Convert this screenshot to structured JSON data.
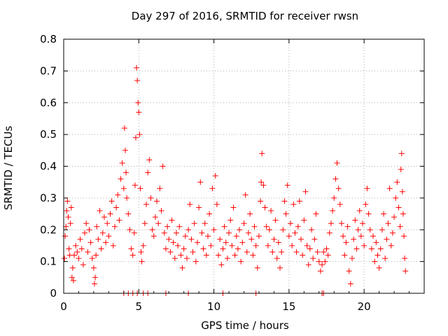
{
  "chart_data": {
    "type": "scatter",
    "title": "Day 297 of 2016, SRMTID for receiver rwsn",
    "xlabel": "GPS time / hours",
    "ylabel": "SRMTID / TECUs",
    "xlim": [
      0,
      24
    ],
    "ylim": [
      0,
      0.8
    ],
    "xticks": [
      {
        "value": 0,
        "label": "0"
      },
      {
        "value": 5,
        "label": "5"
      },
      {
        "value": 10,
        "label": "10"
      },
      {
        "value": 15,
        "label": "15"
      },
      {
        "value": 20,
        "label": "20"
      }
    ],
    "yticks": [
      {
        "value": 0,
        "label": "0"
      },
      {
        "value": 0.1,
        "label": "0.1"
      },
      {
        "value": 0.2,
        "label": "0.2"
      },
      {
        "value": 0.3,
        "label": "0.3"
      },
      {
        "value": 0.4,
        "label": "0.4"
      },
      {
        "value": 0.5,
        "label": "0.5"
      },
      {
        "value": 0.6,
        "label": "0.6"
      },
      {
        "value": 0.7,
        "label": "0.7"
      },
      {
        "value": 0.8,
        "label": "0.8"
      }
    ],
    "grid": true,
    "marker": "+",
    "series": [
      {
        "name": "SRMTID",
        "color": "#ff0000",
        "points": [
          [
            0.05,
            0.11
          ],
          [
            0.1,
            0.18
          ],
          [
            0.15,
            0.21
          ],
          [
            0.2,
            0.26
          ],
          [
            0.25,
            0.29
          ],
          [
            0.3,
            0.24
          ],
          [
            0.35,
            0.14
          ],
          [
            0.4,
            0.12
          ],
          [
            0.45,
            0.22
          ],
          [
            0.5,
            0.27
          ],
          [
            0.55,
            0.05
          ],
          [
            0.6,
            0.08
          ],
          [
            0.65,
            0.04
          ],
          [
            0.7,
            0.12
          ],
          [
            0.8,
            0.15
          ],
          [
            0.9,
            0.13
          ],
          [
            1.0,
            0.11
          ],
          [
            1.1,
            0.17
          ],
          [
            1.2,
            0.14
          ],
          [
            1.3,
            0.09
          ],
          [
            1.4,
            0.19
          ],
          [
            1.5,
            0.22
          ],
          [
            1.6,
            0.13
          ],
          [
            1.7,
            0.2
          ],
          [
            1.8,
            0.16
          ],
          [
            1.9,
            0.11
          ],
          [
            2.0,
            0.08
          ],
          [
            2.05,
            0.03
          ],
          [
            2.1,
            0.05
          ],
          [
            2.15,
            0.12
          ],
          [
            2.2,
            0.21
          ],
          [
            2.3,
            0.17
          ],
          [
            2.4,
            0.26
          ],
          [
            2.5,
            0.14
          ],
          [
            2.6,
            0.19
          ],
          [
            2.7,
            0.24
          ],
          [
            2.8,
            0.16
          ],
          [
            2.9,
            0.22
          ],
          [
            3.0,
            0.18
          ],
          [
            3.1,
            0.25
          ],
          [
            3.2,
            0.29
          ],
          [
            3.3,
            0.15
          ],
          [
            3.4,
            0.21
          ],
          [
            3.5,
            0.27
          ],
          [
            3.6,
            0.31
          ],
          [
            3.7,
            0.23
          ],
          [
            3.8,
            0.36
          ],
          [
            3.9,
            0.41
          ],
          [
            4.0,
            0.33
          ],
          [
            4.05,
            0.52
          ],
          [
            4.1,
            0.45
          ],
          [
            4.15,
            0.38
          ],
          [
            4.2,
            0.3
          ],
          [
            4.3,
            0.25
          ],
          [
            4.4,
            0.2
          ],
          [
            4.5,
            0.14
          ],
          [
            4.6,
            0.12
          ],
          [
            4.7,
            0.19
          ],
          [
            4.75,
            0.34
          ],
          [
            4.8,
            0.49
          ],
          [
            4.85,
            0.71
          ],
          [
            4.9,
            0.67
          ],
          [
            4.95,
            0.6
          ],
          [
            5.0,
            0.57
          ],
          [
            5.05,
            0.5
          ],
          [
            5.1,
            0.33
          ],
          [
            5.15,
            0.13
          ],
          [
            5.2,
            0.1
          ],
          [
            5.3,
            0.15
          ],
          [
            5.4,
            0.22
          ],
          [
            5.5,
            0.28
          ],
          [
            5.6,
            0.38
          ],
          [
            5.7,
            0.42
          ],
          [
            5.8,
            0.3
          ],
          [
            5.9,
            0.2
          ],
          [
            6.0,
            0.18
          ],
          [
            6.1,
            0.24
          ],
          [
            6.2,
            0.29
          ],
          [
            6.3,
            0.22
          ],
          [
            6.4,
            0.33
          ],
          [
            6.5,
            0.26
          ],
          [
            6.6,
            0.4
          ],
          [
            6.7,
            0.19
          ],
          [
            6.8,
            0.14
          ],
          [
            6.9,
            0.21
          ],
          [
            7.0,
            0.17
          ],
          [
            7.1,
            0.13
          ],
          [
            7.2,
            0.23
          ],
          [
            7.3,
            0.16
          ],
          [
            7.4,
            0.11
          ],
          [
            7.5,
            0.19
          ],
          [
            7.6,
            0.15
          ],
          [
            7.7,
            0.21
          ],
          [
            7.8,
            0.12
          ],
          [
            7.9,
            0.08
          ],
          [
            8.0,
            0.14
          ],
          [
            8.1,
            0.18
          ],
          [
            8.2,
            0.11
          ],
          [
            8.3,
            0.2
          ],
          [
            8.4,
            0.28
          ],
          [
            8.5,
            0.17
          ],
          [
            8.6,
            0.13
          ],
          [
            8.7,
            0.22
          ],
          [
            8.8,
            0.1
          ],
          [
            8.9,
            0.16
          ],
          [
            9.0,
            0.27
          ],
          [
            9.1,
            0.35
          ],
          [
            9.2,
            0.19
          ],
          [
            9.3,
            0.14
          ],
          [
            9.4,
            0.22
          ],
          [
            9.5,
            0.12
          ],
          [
            9.6,
            0.18
          ],
          [
            9.7,
            0.25
          ],
          [
            9.8,
            0.15
          ],
          [
            9.9,
            0.33
          ],
          [
            10.0,
            0.2
          ],
          [
            10.1,
            0.37
          ],
          [
            10.2,
            0.28
          ],
          [
            10.3,
            0.12
          ],
          [
            10.4,
            0.17
          ],
          [
            10.5,
            0.09
          ],
          [
            10.6,
            0.14
          ],
          [
            10.7,
            0.21
          ],
          [
            10.8,
            0.16
          ],
          [
            10.9,
            0.11
          ],
          [
            11.0,
            0.19
          ],
          [
            11.1,
            0.23
          ],
          [
            11.2,
            0.15
          ],
          [
            11.3,
            0.27
          ],
          [
            11.4,
            0.12
          ],
          [
            11.5,
            0.18
          ],
          [
            11.6,
            0.14
          ],
          [
            11.7,
            0.2
          ],
          [
            11.8,
            0.1
          ],
          [
            11.9,
            0.16
          ],
          [
            12.0,
            0.22
          ],
          [
            12.1,
            0.31
          ],
          [
            12.2,
            0.13
          ],
          [
            12.3,
            0.19
          ],
          [
            12.4,
            0.25
          ],
          [
            12.5,
            0.17
          ],
          [
            12.6,
            0.12
          ],
          [
            12.7,
            0.21
          ],
          [
            12.8,
            0.15
          ],
          [
            12.9,
            0.08
          ],
          [
            13.0,
            0.18
          ],
          [
            13.1,
            0.29
          ],
          [
            13.15,
            0.35
          ],
          [
            13.2,
            0.44
          ],
          [
            13.3,
            0.34
          ],
          [
            13.4,
            0.27
          ],
          [
            13.5,
            0.21
          ],
          [
            13.6,
            0.15
          ],
          [
            13.7,
            0.2
          ],
          [
            13.8,
            0.26
          ],
          [
            13.9,
            0.13
          ],
          [
            14.0,
            0.17
          ],
          [
            14.1,
            0.23
          ],
          [
            14.2,
            0.11
          ],
          [
            14.3,
            0.16
          ],
          [
            14.4,
            0.08
          ],
          [
            14.5,
            0.13
          ],
          [
            14.6,
            0.2
          ],
          [
            14.7,
            0.29
          ],
          [
            14.8,
            0.25
          ],
          [
            14.9,
            0.34
          ],
          [
            15.0,
            0.18
          ],
          [
            15.1,
            0.22
          ],
          [
            15.2,
            0.15
          ],
          [
            15.3,
            0.28
          ],
          [
            15.4,
            0.19
          ],
          [
            15.5,
            0.13
          ],
          [
            15.6,
            0.21
          ],
          [
            15.7,
            0.29
          ],
          [
            15.8,
            0.17
          ],
          [
            15.9,
            0.12
          ],
          [
            16.0,
            0.23
          ],
          [
            16.1,
            0.32
          ],
          [
            16.2,
            0.15
          ],
          [
            16.3,
            0.09
          ],
          [
            16.4,
            0.14
          ],
          [
            16.5,
            0.2
          ],
          [
            16.6,
            0.11
          ],
          [
            16.7,
            0.17
          ],
          [
            16.8,
            0.25
          ],
          [
            16.9,
            0.13
          ],
          [
            17.0,
            0.1
          ],
          [
            17.1,
            0.07
          ],
          [
            17.2,
            0.09
          ],
          [
            17.3,
            0.13
          ],
          [
            17.4,
            0.1
          ],
          [
            17.5,
            0.14
          ],
          [
            17.6,
            0.12
          ],
          [
            17.7,
            0.19
          ],
          [
            17.8,
            0.22
          ],
          [
            17.9,
            0.26
          ],
          [
            18.0,
            0.3
          ],
          [
            18.1,
            0.36
          ],
          [
            18.2,
            0.41
          ],
          [
            18.3,
            0.33
          ],
          [
            18.4,
            0.28
          ],
          [
            18.5,
            0.22
          ],
          [
            18.6,
            0.18
          ],
          [
            18.7,
            0.12
          ],
          [
            18.8,
            0.16
          ],
          [
            18.9,
            0.21
          ],
          [
            19.0,
            0.07
          ],
          [
            19.1,
            0.03
          ],
          [
            19.2,
            0.11
          ],
          [
            19.3,
            0.17
          ],
          [
            19.4,
            0.23
          ],
          [
            19.5,
            0.14
          ],
          [
            19.6,
            0.2
          ],
          [
            19.7,
            0.26
          ],
          [
            19.8,
            0.18
          ],
          [
            19.9,
            0.22
          ],
          [
            20.0,
            0.15
          ],
          [
            20.1,
            0.28
          ],
          [
            20.2,
            0.33
          ],
          [
            20.3,
            0.25
          ],
          [
            20.4,
            0.2
          ],
          [
            20.5,
            0.14
          ],
          [
            20.6,
            0.18
          ],
          [
            20.7,
            0.1
          ],
          [
            20.8,
            0.16
          ],
          [
            20.9,
            0.12
          ],
          [
            21.0,
            0.08
          ],
          [
            21.1,
            0.14
          ],
          [
            21.2,
            0.2
          ],
          [
            21.3,
            0.25
          ],
          [
            21.4,
            0.11
          ],
          [
            21.5,
            0.17
          ],
          [
            21.6,
            0.22
          ],
          [
            21.7,
            0.33
          ],
          [
            21.8,
            0.15
          ],
          [
            21.9,
            0.19
          ],
          [
            22.0,
            0.24
          ],
          [
            22.1,
            0.3
          ],
          [
            22.2,
            0.35
          ],
          [
            22.3,
            0.27
          ],
          [
            22.4,
            0.21
          ],
          [
            22.45,
            0.39
          ],
          [
            22.5,
            0.44
          ],
          [
            22.55,
            0.32
          ],
          [
            22.6,
            0.25
          ],
          [
            22.65,
            0.18
          ],
          [
            22.7,
            0.11
          ],
          [
            22.75,
            0.07
          ],
          [
            4.0,
            0.0
          ],
          [
            4.3,
            0.0
          ],
          [
            4.6,
            0.0
          ],
          [
            4.9,
            0.0
          ],
          [
            5.3,
            0.0
          ],
          [
            5.6,
            0.0
          ],
          [
            6.8,
            0.0
          ],
          [
            8.3,
            0.0
          ],
          [
            10.6,
            0.0
          ],
          [
            12.8,
            0.0
          ],
          [
            17.2,
            0.0
          ],
          [
            17.3,
            0.0
          ]
        ]
      }
    ]
  }
}
